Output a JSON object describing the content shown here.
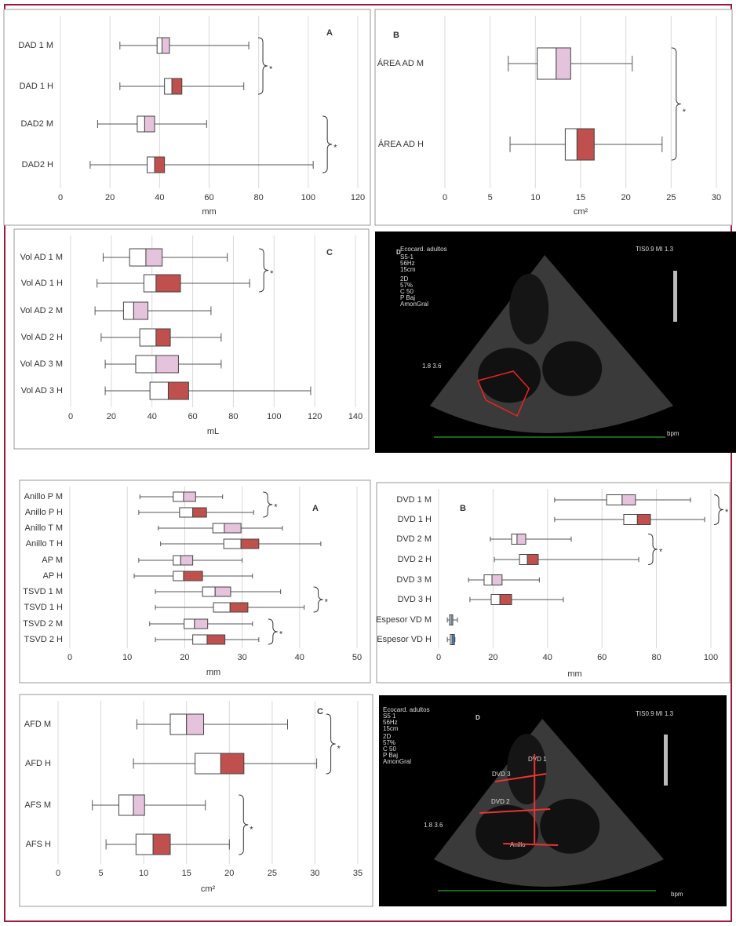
{
  "chart_data": [
    {
      "type": "box",
      "panel": "A",
      "xlabel": "mm",
      "xlim": [
        0,
        120
      ],
      "xticks": [
        0,
        20,
        40,
        60,
        80,
        100,
        120
      ],
      "categories": [
        "DAD 1 M",
        "DAD 1 H",
        "DAD2 M",
        "DAD2 H"
      ],
      "min": [
        24,
        24,
        15,
        12
      ],
      "q1": [
        39,
        42,
        31,
        35
      ],
      "median": [
        41,
        45,
        34,
        38
      ],
      "q3": [
        44,
        49,
        38,
        42
      ],
      "max": [
        76,
        74,
        59,
        102
      ],
      "colors": [
        "#e6c3dc",
        "#c0504d",
        "#e6c3dc",
        "#c0504d"
      ],
      "brackets": [
        {
          "from": 0,
          "to": 1,
          "label": "*"
        },
        {
          "from": 2,
          "to": 3,
          "label": "*"
        }
      ]
    },
    {
      "type": "box",
      "panel": "B",
      "xlabel": "cm²",
      "xlim": [
        0,
        30
      ],
      "xticks": [
        0,
        5,
        10,
        15,
        20,
        25,
        30
      ],
      "categories": [
        "ÁREA AD M",
        "ÁREA AD H"
      ],
      "min": [
        7,
        7.2
      ],
      "q1": [
        10.2,
        13.3
      ],
      "median": [
        12.3,
        14.6
      ],
      "q3": [
        13.9,
        16.5
      ],
      "max": [
        20.7,
        24
      ],
      "colors": [
        "#e6c3dc",
        "#c0504d"
      ],
      "brackets": [
        {
          "from": 0,
          "to": 1,
          "label": "*"
        }
      ]
    },
    {
      "type": "box",
      "panel": "C",
      "xlabel": "mL",
      "xlim": [
        0,
        140
      ],
      "xticks": [
        0,
        20,
        40,
        60,
        80,
        100,
        120,
        140
      ],
      "categories": [
        "Vol AD 1 M",
        "Vol AD 1 H",
        "Vol AD 2 M",
        "Vol AD 2 H",
        "Vol AD 3 M",
        "Vol AD 3 H"
      ],
      "min": [
        16,
        13,
        12,
        15,
        17,
        17
      ],
      "q1": [
        29,
        36,
        26,
        34,
        32,
        39
      ],
      "median": [
        37,
        42,
        31,
        42,
        42,
        48
      ],
      "q3": [
        45,
        54,
        38,
        49,
        53,
        58
      ],
      "max": [
        77,
        88,
        69,
        74,
        74,
        118
      ],
      "colors": [
        "#e6c3dc",
        "#c0504d",
        "#e6c3dc",
        "#c0504d",
        "#e6c3dc",
        "#c0504d"
      ],
      "brackets": [
        {
          "from": 0,
          "to": 1,
          "label": "*"
        }
      ]
    },
    {
      "type": "image",
      "panel": "D",
      "texts": [
        "Ecocard. adultos",
        "S5-1",
        "56Hz",
        "15cm",
        "2D",
        "57%",
        "C 50",
        "P Baj",
        "AmonGral",
        "TIS0.9   MI 1.3",
        "1.8 3.6",
        "bpm"
      ]
    },
    {
      "type": "box",
      "panel": "A",
      "xlabel": "mm",
      "xlim": [
        0,
        50
      ],
      "xticks": [
        0,
        10,
        20,
        30,
        40,
        50
      ],
      "categories": [
        "Anillo P M",
        "Anillo P H",
        "Anillo T M",
        "Anillo T H",
        "AP M",
        "AP H",
        "TSVD 1 M",
        "TSVD 1 H",
        "TSVD 2 M",
        "TSVD 2 H"
      ],
      "min": [
        12.2,
        12,
        15.4,
        15.8,
        12,
        11.2,
        14.9,
        14.9,
        13.9,
        14.9
      ],
      "q1": [
        18,
        19.1,
        24.9,
        26.8,
        18,
        18,
        23.1,
        25,
        19.9,
        21.4
      ],
      "median": [
        19.8,
        21.4,
        26.9,
        29.8,
        19.3,
        19.8,
        25.3,
        27.9,
        21.7,
        23.9
      ],
      "q3": [
        21.9,
        23.8,
        29.8,
        32.9,
        21.4,
        23.1,
        28,
        31,
        24,
        27
      ],
      "max": [
        26.6,
        32,
        37,
        43.7,
        30,
        31.8,
        36.7,
        40.8,
        31.8,
        32.9
      ],
      "colors": [
        "#e6c3dc",
        "#c0504d",
        "#e6c3dc",
        "#c0504d",
        "#e6c3dc",
        "#c0504d",
        "#e6c3dc",
        "#c0504d",
        "#e6c3dc",
        "#c0504d"
      ],
      "brackets": [
        {
          "from": 0,
          "to": 1,
          "label": "*"
        },
        {
          "from": 6,
          "to": 7,
          "label": "*"
        },
        {
          "from": 8,
          "to": 9,
          "label": "*"
        }
      ]
    },
    {
      "type": "box",
      "panel": "B",
      "xlabel": "mm",
      "xlim": [
        0,
        100
      ],
      "xticks": [
        0,
        20,
        40,
        60,
        80,
        100
      ],
      "categories": [
        "DVD 1 M",
        "DVD 1 H",
        "DVD 2 M",
        "DVD 2 H",
        "DVD 3 M",
        "DVD 3 H",
        "Espesor VD M",
        "Espesor VD H"
      ],
      "min": [
        42.6,
        42.6,
        19,
        20.5,
        11,
        11.5,
        3.2,
        3.2
      ],
      "q1": [
        61.7,
        68,
        26.8,
        29.7,
        16.7,
        19.3,
        4,
        4.3
      ],
      "median": [
        67.4,
        73,
        28.8,
        32.6,
        19.6,
        22.5,
        4.6,
        4.9
      ],
      "q3": [
        72.3,
        77.8,
        32,
        36.6,
        23.3,
        26.8,
        5.2,
        5.8
      ],
      "max": [
        92.5,
        97.7,
        48.7,
        73.5,
        37,
        45.8,
        6.9,
        6
      ],
      "colors": [
        "#e6c3dc",
        "#c0504d",
        "#e6c3dc",
        "#c0504d",
        "#e6c3dc",
        "#c0504d",
        "#8fb0d8",
        "#4f81bd"
      ],
      "brackets": [
        {
          "from": 0,
          "to": 1,
          "label": "*"
        },
        {
          "from": 2,
          "to": 3,
          "label": "*"
        }
      ]
    },
    {
      "type": "box",
      "panel": "C",
      "xlabel": "cm²",
      "xlim": [
        0,
        35
      ],
      "xticks": [
        0,
        5,
        10,
        15,
        20,
        25,
        30,
        35
      ],
      "categories": [
        "AFD M",
        "AFD H",
        "AFS M",
        "AFS H"
      ],
      "min": [
        9.2,
        8.8,
        4,
        5.6
      ],
      "q1": [
        13.1,
        16,
        7.1,
        9.1
      ],
      "median": [
        15,
        19,
        8.8,
        11.1
      ],
      "q3": [
        17,
        21.7,
        10.1,
        13.1
      ],
      "max": [
        26.8,
        30.2,
        17.2,
        20
      ],
      "colors": [
        "#e6c3dc",
        "#c0504d",
        "#e6c3dc",
        "#c0504d"
      ],
      "brackets": [
        {
          "from": 0,
          "to": 1,
          "label": "*"
        },
        {
          "from": 2,
          "to": 3,
          "label": "*"
        }
      ]
    },
    {
      "type": "image",
      "panel": "D",
      "texts": [
        "Ecocard. adultos",
        "S5 1",
        "56Hz",
        "15cm",
        "2D",
        "57%",
        "C 50",
        "P Baj",
        "AmonGral",
        "TIS0.9   MI 1.3",
        "1.8 3.6",
        "DVD 1",
        "DVD 3",
        "DVD 2",
        "Anillo",
        "bpm"
      ]
    }
  ]
}
